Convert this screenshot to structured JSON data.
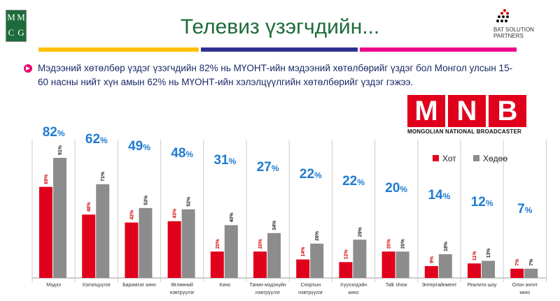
{
  "header": {
    "logo_letters": [
      "M",
      "M",
      "C",
      "G"
    ],
    "title": "Телевиз үзэгчдийн...",
    "partner": "BAT SOLUTION PARTNERS"
  },
  "bands": [
    "#ffc000",
    "#2e3192",
    "#ec008c"
  ],
  "description": "Мэдээний хөтөлбөр үздэг үзэгчдийн 82% нь МҮОНТ-ийн мэдээний хөтөлбөрийг үздэг бол Монгол улсын 15-60 насны нийт хүн амын 62% нь МҮОНТ-ийн хэлэлцүүлгийн хөтөлбөрийг үздэг гэжээ.",
  "mnb": {
    "letters": [
      "M",
      "N",
      "B"
    ],
    "subtitle": "MONGOLIAN NATIONAL BROADCASTER"
  },
  "chart_data": {
    "type": "bar",
    "categories": [
      "Мэдээ",
      "Хэлэлцүүлэг",
      "Баримтат кино",
      "Өглөөний нэвтрүүлэг",
      "Кино",
      "Танин мэдэхүйн нэвтрүүлэг",
      "Спортын нэвтрүүлэг",
      "Хүүхэлдэйн кино",
      "Talk show",
      "Энтертайнмент",
      "Реалити шоу",
      "Олон ангит кино"
    ],
    "series": [
      {
        "name": "Хот",
        "color": "#e0001b",
        "values": [
          69,
          48,
          42,
          43,
          20,
          20,
          14,
          12,
          20,
          9,
          11,
          7
        ]
      },
      {
        "name": "Хөдөө",
        "color": "#8c8c8c",
        "values": [
          91,
          71,
          53,
          52,
          40,
          34,
          26,
          29,
          20,
          18,
          13,
          7
        ]
      }
    ],
    "totals": [
      82,
      62,
      49,
      48,
      31,
      27,
      22,
      22,
      20,
      14,
      12,
      7
    ],
    "unit": "%",
    "legend": "top-right",
    "ylim": [
      0,
      100
    ]
  }
}
